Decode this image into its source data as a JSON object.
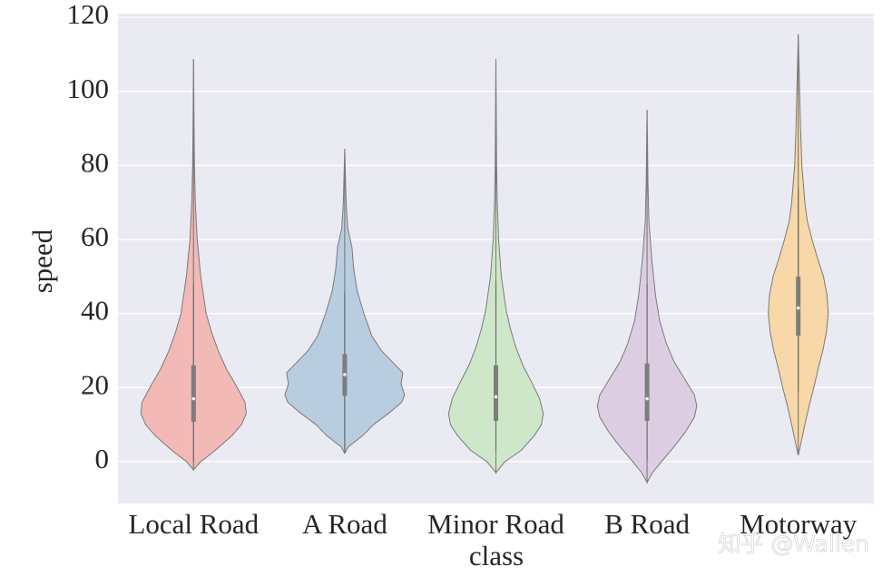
{
  "chart_data": {
    "type": "violin",
    "ylabel": "speed",
    "xlabel": "class",
    "watermark": "知乎 @Wallen",
    "categories": [
      "Local Road",
      "A Road",
      "Minor Road",
      "B Road",
      "Motorway"
    ],
    "ylim": [
      -11.3,
      121
    ],
    "yticks": [
      0,
      20,
      40,
      60,
      80,
      100,
      120
    ],
    "grid": true,
    "background": "#eaeaf2",
    "violins": [
      {
        "color": "#f3b9b6",
        "y": [
          -2.2,
          0,
          3,
          7,
          10,
          13,
          16,
          20,
          25,
          30,
          35,
          40,
          50,
          60,
          70,
          80,
          90,
          108.7
        ],
        "density": [
          0,
          0.12,
          0.36,
          0.64,
          0.8,
          0.88,
          0.86,
          0.73,
          0.55,
          0.41,
          0.3,
          0.21,
          0.12,
          0.06,
          0.03,
          0.015,
          0.009,
          0
        ],
        "whisker": [
          0,
          48
        ],
        "box": [
          10.8,
          26
        ],
        "median": 17
      },
      {
        "color": "#b9cde0",
        "y": [
          2.2,
          4,
          7,
          10,
          13,
          16,
          18,
          21,
          24,
          27,
          30,
          34,
          40,
          46,
          52,
          58,
          63,
          70,
          84.5
        ],
        "density": [
          0,
          0.06,
          0.3,
          0.48,
          0.73,
          0.95,
          1,
          0.94,
          0.97,
          0.79,
          0.61,
          0.45,
          0.32,
          0.21,
          0.15,
          0.12,
          0.05,
          0.023,
          0
        ],
        "whisker": [
          2.2,
          46
        ],
        "box": [
          17.8,
          29
        ],
        "median": 23.5
      },
      {
        "color": "#cfe7c9",
        "y": [
          -3,
          0,
          3,
          7,
          10,
          13,
          17,
          21,
          26,
          31,
          36,
          41,
          50,
          60,
          70,
          80,
          90,
          108.7
        ],
        "density": [
          0,
          0.15,
          0.42,
          0.64,
          0.76,
          0.79,
          0.73,
          0.61,
          0.45,
          0.33,
          0.24,
          0.17,
          0.09,
          0.045,
          0.023,
          0.012,
          0.008,
          0
        ],
        "whisker": [
          3,
          49
        ],
        "box": [
          11,
          26
        ],
        "median": 17.5
      },
      {
        "color": "#dccde3",
        "y": [
          -5.6,
          -3,
          0,
          4,
          8,
          12,
          15,
          18,
          22,
          27,
          32,
          38,
          45,
          55,
          65,
          75,
          85,
          95
        ],
        "density": [
          0,
          0.09,
          0.24,
          0.45,
          0.64,
          0.79,
          0.83,
          0.79,
          0.64,
          0.45,
          0.32,
          0.21,
          0.14,
          0.076,
          0.03,
          0.015,
          0.008,
          0
        ],
        "whisker": [
          0.5,
          48
        ],
        "box": [
          11,
          26.5
        ],
        "median": 17
      },
      {
        "color": "#f8d8a8",
        "y": [
          1.7,
          5,
          10,
          15,
          20,
          25,
          30,
          35,
          40,
          45,
          50,
          55,
          60,
          65,
          70,
          80,
          90,
          100,
          115.4
        ],
        "density": [
          0,
          0.045,
          0.11,
          0.18,
          0.26,
          0.33,
          0.41,
          0.47,
          0.5,
          0.48,
          0.42,
          0.32,
          0.23,
          0.15,
          0.11,
          0.06,
          0.038,
          0.023,
          0
        ],
        "whisker": [
          19,
          74
        ],
        "box": [
          34,
          50
        ],
        "median": 41.5
      }
    ]
  }
}
